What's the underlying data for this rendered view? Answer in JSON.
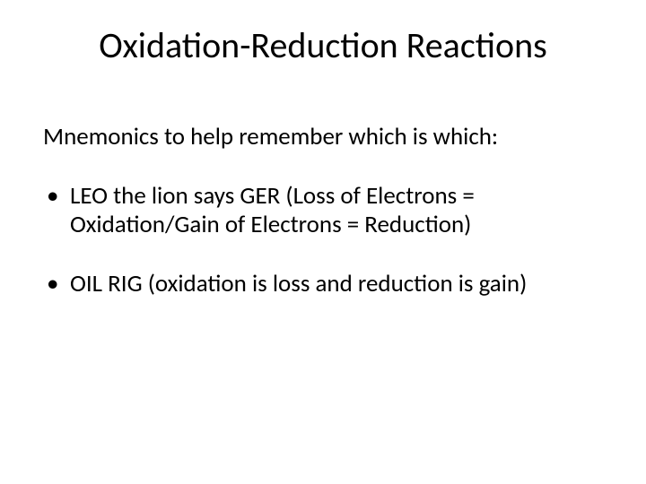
{
  "slide": {
    "title": "Oxidation-Reduction Reactions",
    "subtitle": "Mnemonics to help remember which is which:",
    "bullets": [
      "LEO the lion says GER  (Loss of Electrons = Oxidation/Gain of Electrons = Reduction)",
      "OIL RIG  (oxidation is loss and reduction is gain)"
    ],
    "background_color": "#ffffff",
    "text_color": "#000000",
    "title_fontsize": 40,
    "body_fontsize": 27,
    "font_family": "Calibri"
  }
}
